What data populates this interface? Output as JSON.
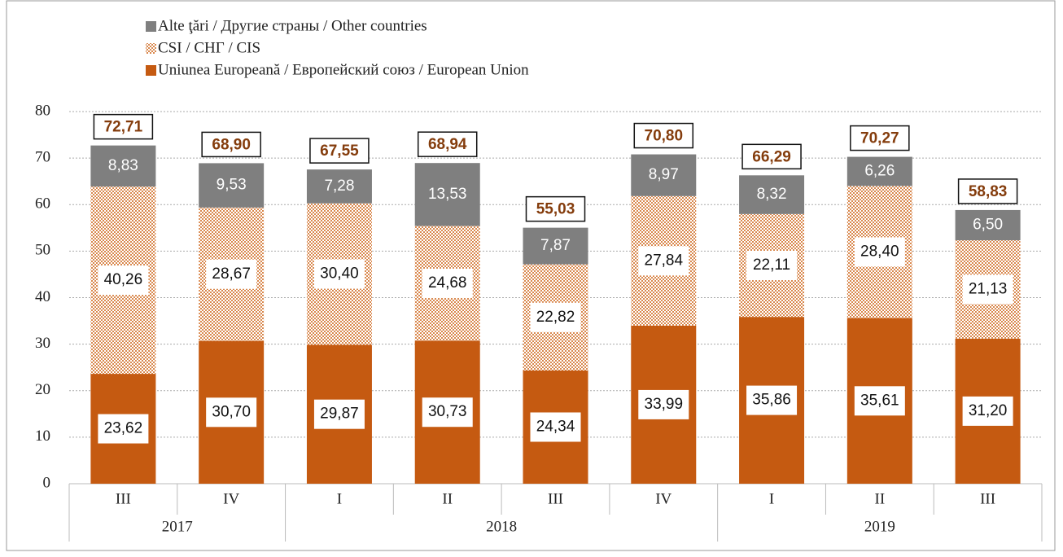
{
  "chart_data": {
    "type": "stacked_bar",
    "categories": [
      "III",
      "IV",
      "I",
      "II",
      "III",
      "IV",
      "I",
      "II",
      "III"
    ],
    "groups": [
      {
        "name": "2017",
        "span": 2
      },
      {
        "name": "2018",
        "span": 4
      },
      {
        "name": "2019",
        "span": 3
      }
    ],
    "series": [
      {
        "name": "Uniunea Europeană / Европейский союз / European Union",
        "color": "#c55a11",
        "values": [
          23.62,
          30.7,
          29.87,
          30.73,
          24.34,
          33.99,
          35.86,
          35.61,
          31.2
        ],
        "value_labels": [
          "23,62",
          "30,70",
          "29,87",
          "30,73",
          "24,34",
          "33,99",
          "35,86",
          "35,61",
          "31,20"
        ]
      },
      {
        "name": "CSI / СНГ / CIS",
        "color": "#d9894f",
        "pattern": true,
        "values": [
          40.26,
          28.67,
          30.4,
          24.68,
          22.82,
          27.84,
          22.11,
          28.4,
          21.13
        ],
        "value_labels": [
          "40,26",
          "28,67",
          "30,40",
          "24,68",
          "22,82",
          "27,84",
          "22,11",
          "28,40",
          "21,13"
        ]
      },
      {
        "name": "Alte ţări / Другие страны / Other countries",
        "color": "#7f7f7f",
        "values": [
          8.83,
          9.53,
          7.28,
          13.53,
          7.87,
          8.97,
          8.32,
          6.26,
          6.5
        ],
        "value_labels": [
          "8,83",
          "9,53",
          "7,28",
          "13,53",
          "7,87",
          "8,97",
          "8,32",
          "6,26",
          "6,50"
        ]
      }
    ],
    "totals": [
      72.71,
      68.9,
      67.55,
      68.94,
      55.03,
      70.8,
      66.29,
      70.27,
      58.83
    ],
    "total_labels": [
      "72,71",
      "68,90",
      "67,55",
      "68,94",
      "55,03",
      "70,80",
      "66,29",
      "70,27",
      "58,83"
    ],
    "ylim": [
      0,
      80
    ],
    "yticks": [
      0,
      10,
      20,
      30,
      40,
      50,
      60,
      70,
      80
    ],
    "grid": true
  }
}
